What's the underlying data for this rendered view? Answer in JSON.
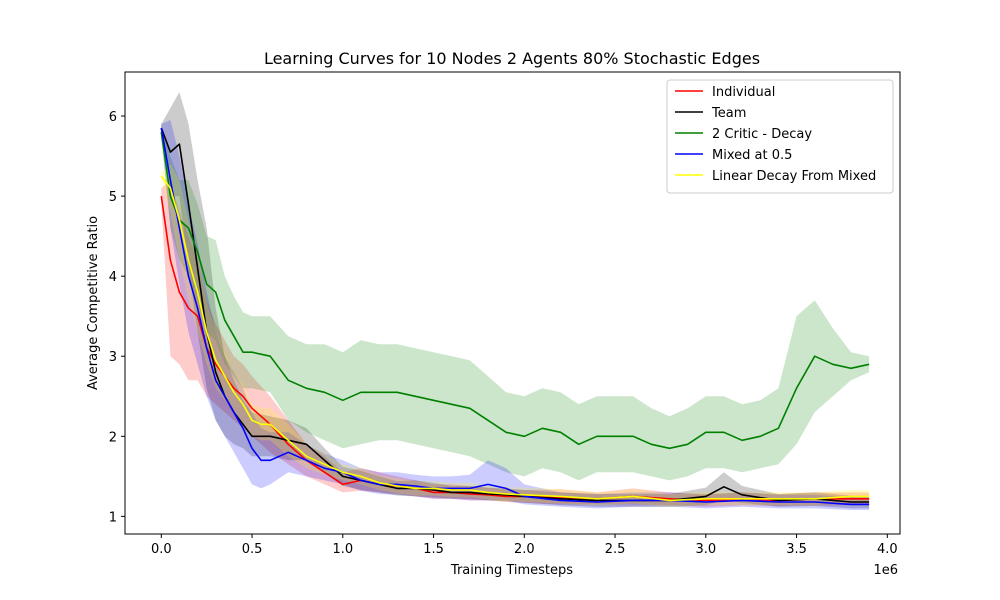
{
  "chart_data": {
    "type": "line",
    "title": "Learning Curves for 10 Nodes 2 Agents 80% Stochastic Edges",
    "xlabel": "Training Timesteps",
    "ylabel": "Average Competitive Ratio",
    "x_offset_label": "1e6",
    "xlim": [
      -0.2,
      4.07
    ],
    "ylim": [
      0.78,
      6.55
    ],
    "xticks": [
      0.0,
      0.5,
      1.0,
      1.5,
      2.0,
      2.5,
      3.0,
      3.5,
      4.0
    ],
    "xtick_labels": [
      "0.0",
      "0.5",
      "1.0",
      "1.5",
      "2.0",
      "2.5",
      "3.0",
      "3.5",
      "4.0"
    ],
    "yticks": [
      1,
      2,
      3,
      4,
      5,
      6
    ],
    "ytick_labels": [
      "1",
      "2",
      "3",
      "4",
      "5",
      "6"
    ],
    "grid": false,
    "legend_position": "top-right",
    "series": [
      {
        "name": "Individual",
        "color": "#ff0000",
        "x": [
          0.0,
          0.05,
          0.1,
          0.15,
          0.2,
          0.25,
          0.3,
          0.35,
          0.4,
          0.45,
          0.5,
          0.6,
          0.7,
          0.8,
          0.9,
          1.0,
          1.1,
          1.2,
          1.3,
          1.4,
          1.5,
          1.6,
          1.7,
          1.8,
          1.9,
          2.0,
          2.2,
          2.4,
          2.6,
          2.8,
          3.0,
          3.2,
          3.4,
          3.6,
          3.8,
          3.9
        ],
        "y": [
          5.0,
          4.2,
          3.8,
          3.6,
          3.5,
          3.1,
          2.9,
          2.75,
          2.6,
          2.5,
          2.35,
          2.15,
          1.9,
          1.7,
          1.55,
          1.4,
          1.45,
          1.4,
          1.38,
          1.35,
          1.3,
          1.3,
          1.28,
          1.27,
          1.25,
          1.25,
          1.24,
          1.22,
          1.25,
          1.22,
          1.2,
          1.22,
          1.2,
          1.22,
          1.22,
          1.22
        ],
        "band_lower": [
          4.9,
          3.0,
          2.9,
          2.7,
          2.7,
          2.5,
          2.4,
          2.3,
          2.2,
          2.1,
          2.0,
          1.8,
          1.65,
          1.5,
          1.4,
          1.3,
          1.32,
          1.3,
          1.28,
          1.25,
          1.22,
          1.22,
          1.2,
          1.2,
          1.18,
          1.17,
          1.15,
          1.15,
          1.15,
          1.14,
          1.12,
          1.14,
          1.13,
          1.14,
          1.14,
          1.14
        ],
        "band_upper": [
          5.1,
          5.2,
          4.8,
          4.5,
          4.2,
          3.7,
          3.4,
          3.2,
          3.0,
          2.9,
          2.75,
          2.5,
          2.2,
          1.9,
          1.75,
          1.55,
          1.6,
          1.55,
          1.5,
          1.45,
          1.4,
          1.4,
          1.38,
          1.36,
          1.34,
          1.33,
          1.34,
          1.3,
          1.35,
          1.3,
          1.28,
          1.3,
          1.28,
          1.3,
          1.3,
          1.3
        ]
      },
      {
        "name": "Team",
        "color": "#000000",
        "x": [
          0.0,
          0.05,
          0.1,
          0.15,
          0.2,
          0.25,
          0.3,
          0.35,
          0.4,
          0.45,
          0.5,
          0.6,
          0.7,
          0.8,
          0.9,
          1.0,
          1.1,
          1.2,
          1.3,
          1.4,
          1.5,
          1.6,
          1.7,
          1.8,
          1.9,
          2.0,
          2.2,
          2.4,
          2.6,
          2.8,
          3.0,
          3.1,
          3.2,
          3.4,
          3.6,
          3.8,
          3.9
        ],
        "y": [
          5.85,
          5.55,
          5.65,
          4.9,
          4.1,
          3.3,
          2.8,
          2.5,
          2.3,
          2.15,
          2.0,
          2.0,
          1.95,
          1.9,
          1.7,
          1.5,
          1.45,
          1.4,
          1.35,
          1.35,
          1.33,
          1.3,
          1.3,
          1.28,
          1.27,
          1.25,
          1.22,
          1.2,
          1.2,
          1.2,
          1.25,
          1.37,
          1.27,
          1.2,
          1.22,
          1.18,
          1.18
        ],
        "band_lower": [
          5.8,
          5.0,
          5.0,
          4.1,
          3.3,
          2.6,
          2.2,
          2.0,
          1.9,
          1.85,
          1.75,
          1.75,
          1.7,
          1.7,
          1.55,
          1.38,
          1.33,
          1.3,
          1.26,
          1.25,
          1.24,
          1.22,
          1.22,
          1.2,
          1.19,
          1.17,
          1.14,
          1.12,
          1.12,
          1.12,
          1.14,
          1.2,
          1.17,
          1.12,
          1.13,
          1.1,
          1.1
        ],
        "band_upper": [
          5.9,
          6.1,
          6.3,
          5.9,
          5.2,
          4.6,
          3.6,
          3.0,
          2.7,
          2.45,
          2.3,
          2.25,
          2.2,
          2.1,
          1.85,
          1.62,
          1.57,
          1.5,
          1.44,
          1.45,
          1.42,
          1.38,
          1.38,
          1.36,
          1.35,
          1.33,
          1.3,
          1.28,
          1.28,
          1.28,
          1.36,
          1.55,
          1.38,
          1.28,
          1.3,
          1.26,
          1.26
        ]
      },
      {
        "name": "2 Critic - Decay",
        "color": "#008000",
        "x": [
          0.0,
          0.05,
          0.1,
          0.15,
          0.2,
          0.25,
          0.3,
          0.35,
          0.4,
          0.45,
          0.5,
          0.6,
          0.7,
          0.8,
          0.9,
          1.0,
          1.1,
          1.2,
          1.3,
          1.4,
          1.5,
          1.6,
          1.7,
          1.8,
          1.9,
          2.0,
          2.1,
          2.2,
          2.3,
          2.4,
          2.5,
          2.6,
          2.7,
          2.8,
          2.9,
          3.0,
          3.1,
          3.2,
          3.3,
          3.4,
          3.5,
          3.6,
          3.7,
          3.8,
          3.9
        ],
        "y": [
          5.8,
          5.0,
          4.7,
          4.6,
          4.3,
          3.9,
          3.8,
          3.45,
          3.25,
          3.05,
          3.05,
          3.0,
          2.7,
          2.6,
          2.55,
          2.45,
          2.55,
          2.55,
          2.55,
          2.5,
          2.45,
          2.4,
          2.35,
          2.2,
          2.05,
          2.0,
          2.1,
          2.05,
          1.9,
          2.0,
          2.0,
          2.0,
          1.9,
          1.85,
          1.9,
          2.05,
          2.05,
          1.95,
          2.0,
          2.1,
          2.6,
          3.0,
          2.9,
          2.85,
          2.9
        ],
        "band_lower": [
          5.7,
          4.6,
          4.2,
          4.0,
          3.7,
          3.3,
          3.2,
          2.9,
          2.75,
          2.6,
          2.6,
          2.55,
          2.2,
          2.05,
          1.95,
          1.85,
          1.9,
          1.95,
          1.95,
          1.9,
          1.85,
          1.8,
          1.75,
          1.65,
          1.55,
          1.5,
          1.6,
          1.55,
          1.45,
          1.55,
          1.55,
          1.55,
          1.5,
          1.45,
          1.5,
          1.6,
          1.6,
          1.55,
          1.6,
          1.65,
          1.9,
          2.3,
          2.5,
          2.7,
          2.8
        ],
        "band_upper": [
          5.9,
          5.5,
          5.2,
          5.2,
          4.9,
          4.5,
          4.45,
          4.0,
          3.75,
          3.55,
          3.5,
          3.5,
          3.25,
          3.15,
          3.15,
          3.05,
          3.2,
          3.15,
          3.15,
          3.1,
          3.05,
          3.0,
          2.95,
          2.75,
          2.55,
          2.5,
          2.6,
          2.55,
          2.4,
          2.5,
          2.5,
          2.5,
          2.35,
          2.25,
          2.35,
          2.5,
          2.5,
          2.4,
          2.45,
          2.6,
          3.5,
          3.7,
          3.35,
          3.05,
          3.0
        ]
      },
      {
        "name": "Mixed at 0.5",
        "color": "#0000ff",
        "x": [
          0.0,
          0.05,
          0.1,
          0.15,
          0.2,
          0.25,
          0.3,
          0.35,
          0.4,
          0.45,
          0.5,
          0.55,
          0.6,
          0.7,
          0.8,
          0.9,
          1.0,
          1.1,
          1.2,
          1.3,
          1.4,
          1.5,
          1.6,
          1.7,
          1.8,
          1.9,
          2.0,
          2.2,
          2.4,
          2.6,
          2.8,
          3.0,
          3.2,
          3.4,
          3.6,
          3.8,
          3.9
        ],
        "y": [
          5.85,
          5.2,
          4.6,
          4.0,
          3.6,
          3.1,
          2.7,
          2.5,
          2.3,
          2.1,
          1.85,
          1.7,
          1.7,
          1.8,
          1.7,
          1.6,
          1.55,
          1.45,
          1.4,
          1.4,
          1.38,
          1.35,
          1.35,
          1.35,
          1.4,
          1.35,
          1.25,
          1.2,
          1.18,
          1.2,
          1.2,
          1.18,
          1.2,
          1.18,
          1.18,
          1.15,
          1.15
        ],
        "band_lower": [
          5.8,
          4.6,
          3.9,
          3.3,
          2.9,
          2.5,
          2.2,
          2.0,
          1.8,
          1.6,
          1.4,
          1.35,
          1.4,
          1.55,
          1.5,
          1.45,
          1.4,
          1.32,
          1.28,
          1.27,
          1.25,
          1.22,
          1.22,
          1.2,
          1.2,
          1.2,
          1.15,
          1.12,
          1.1,
          1.12,
          1.12,
          1.1,
          1.12,
          1.1,
          1.1,
          1.08,
          1.08
        ],
        "band_upper": [
          5.9,
          5.95,
          5.5,
          4.9,
          4.4,
          3.8,
          3.3,
          3.0,
          2.8,
          2.6,
          2.3,
          2.1,
          2.05,
          2.05,
          1.9,
          1.78,
          1.7,
          1.6,
          1.55,
          1.55,
          1.52,
          1.5,
          1.5,
          1.52,
          1.7,
          1.6,
          1.4,
          1.3,
          1.28,
          1.3,
          1.3,
          1.27,
          1.3,
          1.27,
          1.27,
          1.24,
          1.24
        ]
      },
      {
        "name": "Linear Decay From Mixed",
        "color": "#ffff00",
        "x": [
          0.0,
          0.05,
          0.1,
          0.15,
          0.2,
          0.25,
          0.3,
          0.35,
          0.4,
          0.45,
          0.5,
          0.55,
          0.6,
          0.7,
          0.8,
          0.9,
          1.0,
          1.1,
          1.2,
          1.3,
          1.4,
          1.5,
          1.6,
          1.7,
          1.8,
          1.9,
          2.0,
          2.2,
          2.4,
          2.6,
          2.8,
          3.0,
          3.2,
          3.4,
          3.6,
          3.8,
          3.9
        ],
        "y": [
          5.25,
          5.1,
          4.7,
          4.2,
          3.8,
          3.3,
          2.95,
          2.75,
          2.55,
          2.4,
          2.2,
          2.15,
          2.15,
          1.95,
          1.75,
          1.65,
          1.55,
          1.5,
          1.42,
          1.38,
          1.35,
          1.35,
          1.33,
          1.33,
          1.3,
          1.28,
          1.27,
          1.25,
          1.22,
          1.25,
          1.2,
          1.22,
          1.22,
          1.22,
          1.22,
          1.25,
          1.25
        ],
        "band_lower": [
          5.2,
          4.8,
          4.2,
          3.7,
          3.3,
          2.9,
          2.6,
          2.45,
          2.3,
          2.15,
          2.0,
          1.95,
          1.95,
          1.75,
          1.6,
          1.52,
          1.45,
          1.4,
          1.33,
          1.29,
          1.26,
          1.26,
          1.24,
          1.24,
          1.21,
          1.19,
          1.18,
          1.16,
          1.14,
          1.16,
          1.12,
          1.14,
          1.14,
          1.14,
          1.14,
          1.17,
          1.17
        ],
        "band_upper": [
          5.3,
          5.4,
          5.2,
          4.7,
          4.3,
          3.7,
          3.3,
          3.05,
          2.8,
          2.65,
          2.4,
          2.35,
          2.35,
          2.15,
          1.9,
          1.78,
          1.65,
          1.6,
          1.51,
          1.47,
          1.44,
          1.44,
          1.42,
          1.42,
          1.39,
          1.37,
          1.36,
          1.34,
          1.3,
          1.34,
          1.28,
          1.3,
          1.3,
          1.3,
          1.3,
          1.33,
          1.33
        ]
      }
    ]
  }
}
